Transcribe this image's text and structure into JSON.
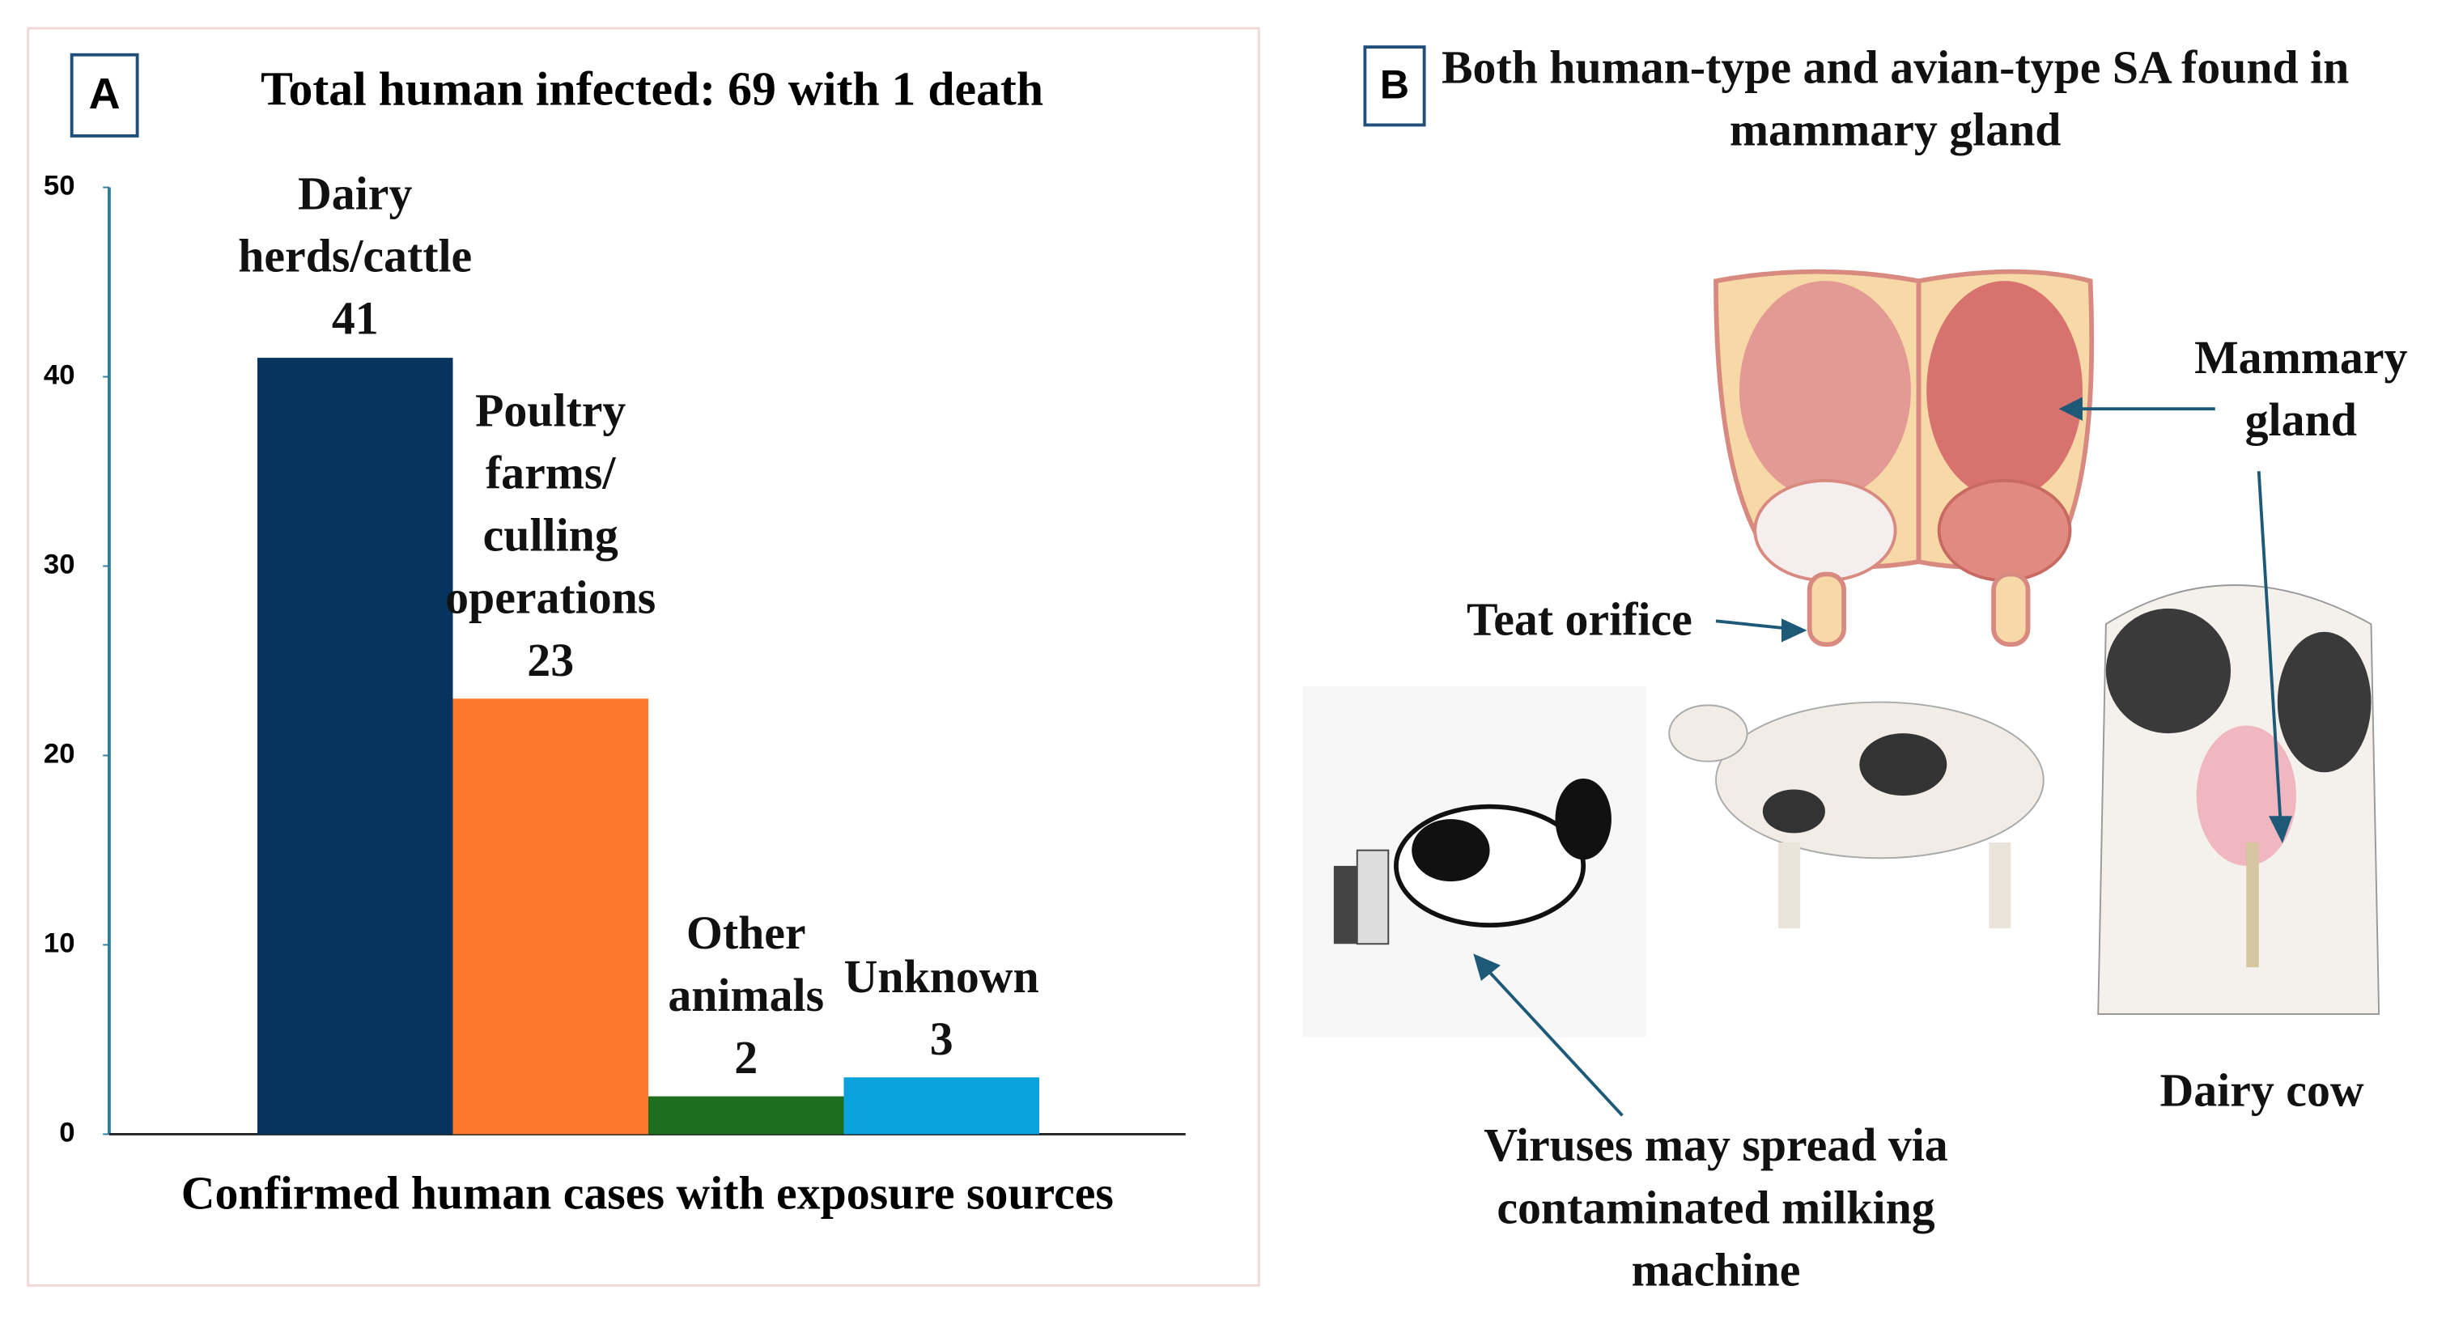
{
  "chart_data": {
    "type": "bar",
    "panel_label": "A",
    "title": "Total human infected: 69 with 1 death",
    "xlabel": "Confirmed human cases with exposure sources",
    "categories": [
      "Dairy herds/cattle",
      "Poultry farms/ culling operations",
      "Other animals",
      "Unknown"
    ],
    "values": [
      41,
      23,
      2,
      3
    ],
    "colors": [
      "#06345e",
      "#fd782d",
      "#1d6e1f",
      "#0aa2dc"
    ],
    "ylim": [
      0,
      50
    ],
    "yticks": [
      0,
      10,
      20,
      30,
      40,
      50
    ],
    "grid": false
  },
  "panel_b": {
    "panel_label": "B",
    "title": "Both human-type and avian-type SA found in mammary gland",
    "labels": {
      "mammary": "Mammary gland",
      "teat": "Teat orifice",
      "cow": "Dairy cow",
      "virus": "Viruses may spread via contaminated milking machine"
    }
  }
}
